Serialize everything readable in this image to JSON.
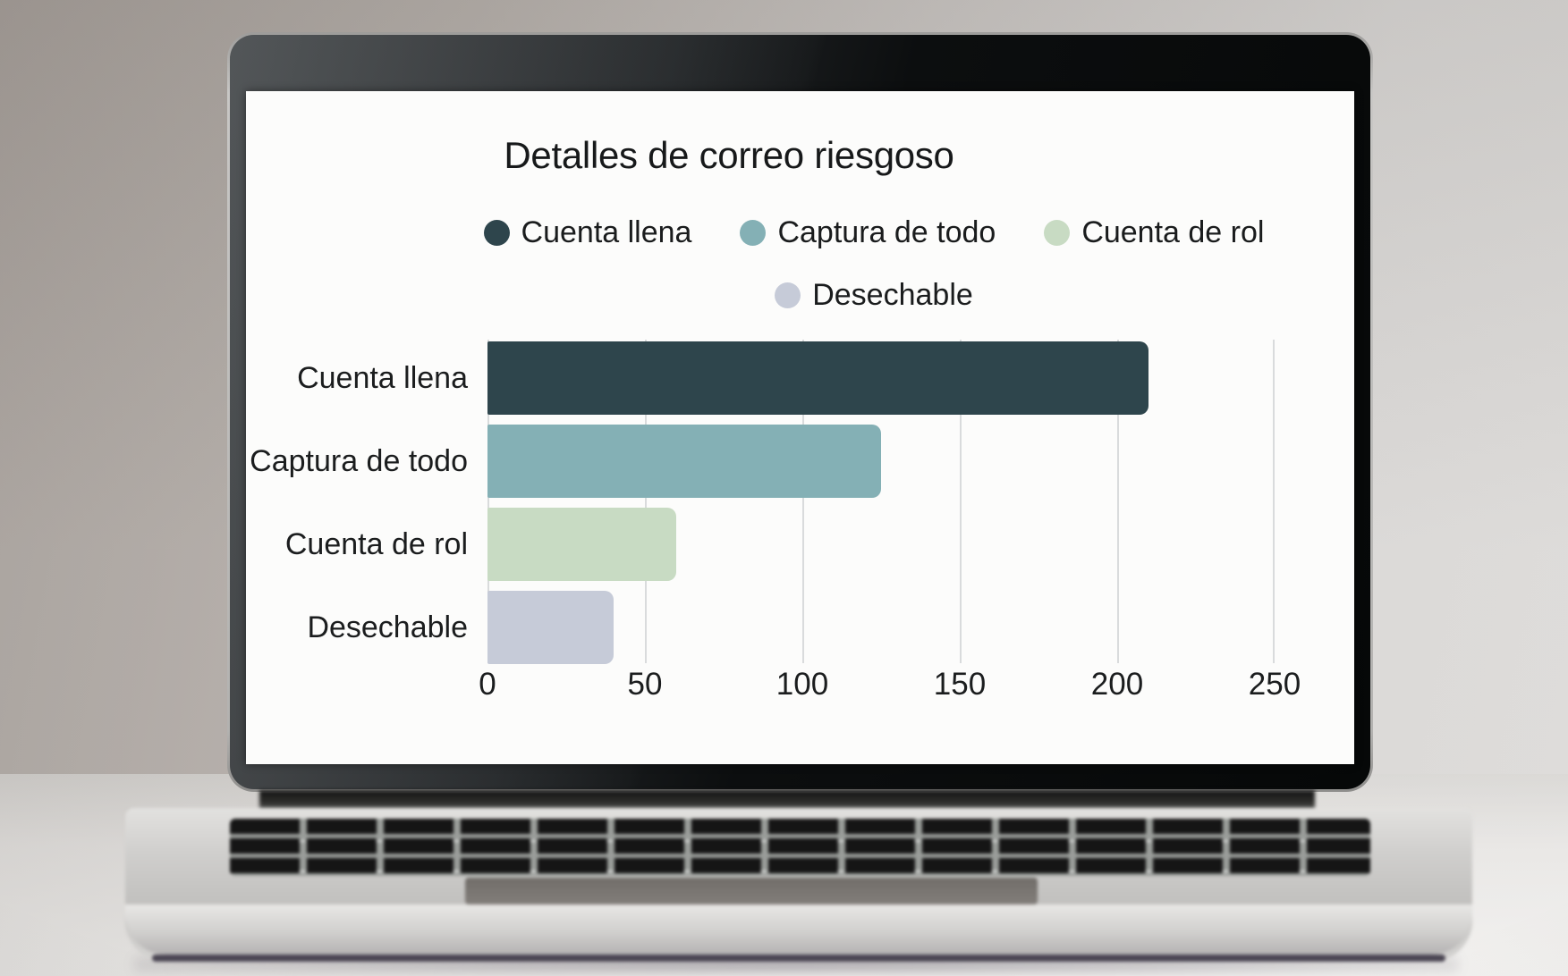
{
  "chart_data": {
    "type": "bar",
    "orientation": "horizontal",
    "title": "Detalles de correo riesgoso",
    "categories": [
      "Cuenta llena",
      "Captura de todo",
      "Cuenta de rol",
      "Desechable"
    ],
    "values": [
      210,
      125,
      60,
      40
    ],
    "xlabel": "",
    "ylabel": "",
    "xlim": [
      0,
      250
    ],
    "xticks": [
      0,
      50,
      100,
      150,
      200,
      250
    ],
    "grid": "vertical",
    "legend_position": "top",
    "legend": [
      {
        "label": "Cuenta llena",
        "color": "#2e454c"
      },
      {
        "label": "Captura de todo",
        "color": "#84b0b5"
      },
      {
        "label": "Cuenta de rol",
        "color": "#c8dbc3"
      },
      {
        "label": "Desechable",
        "color": "#c6cbd8"
      }
    ],
    "bar_colors": [
      "#2e454c",
      "#84b0b5",
      "#c8dbc3",
      "#c6cbd8"
    ],
    "gridline_color": "#d9dbdc",
    "text_color": "#1b1d1e"
  }
}
